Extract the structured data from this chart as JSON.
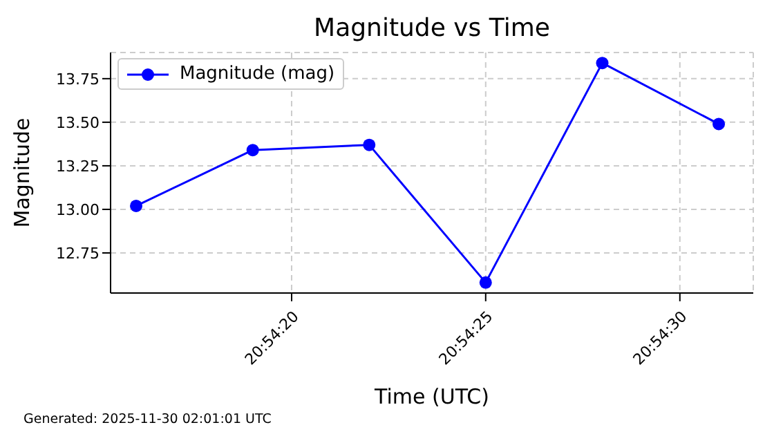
{
  "chart_data": {
    "type": "line",
    "title": "Magnitude vs Time",
    "xlabel": "Time (UTC)",
    "ylabel": "Magnitude",
    "x": [
      20.904444,
      20.905278,
      20.906111,
      20.906944,
      20.907778,
      20.908611
    ],
    "series": [
      {
        "name": "Magnitude (mag)",
        "color": "#0000ff",
        "values": [
          13.02,
          13.34,
          13.37,
          12.58,
          13.84,
          13.49
        ]
      }
    ],
    "xlim": [
      20.904261,
      20.908858
    ],
    "xticks": [
      {
        "value": 20.905556,
        "label": "20:54:20"
      },
      {
        "value": 20.906944,
        "label": "20:54:25"
      },
      {
        "value": 20.908333,
        "label": "20:54:30"
      }
    ],
    "ylim": [
      12.52,
      13.9
    ],
    "yticks": [
      12.75,
      {
        "value": 13.0,
        "label": "13.00"
      },
      13.25,
      {
        "value": 13.5,
        "label": "13.50"
      },
      13.75
    ],
    "grid": true,
    "legend": "top left",
    "marker": "circle",
    "line_style": "solid",
    "annotations": [
      "Generated: 2025-11-30 02:01:01 UTC"
    ]
  }
}
